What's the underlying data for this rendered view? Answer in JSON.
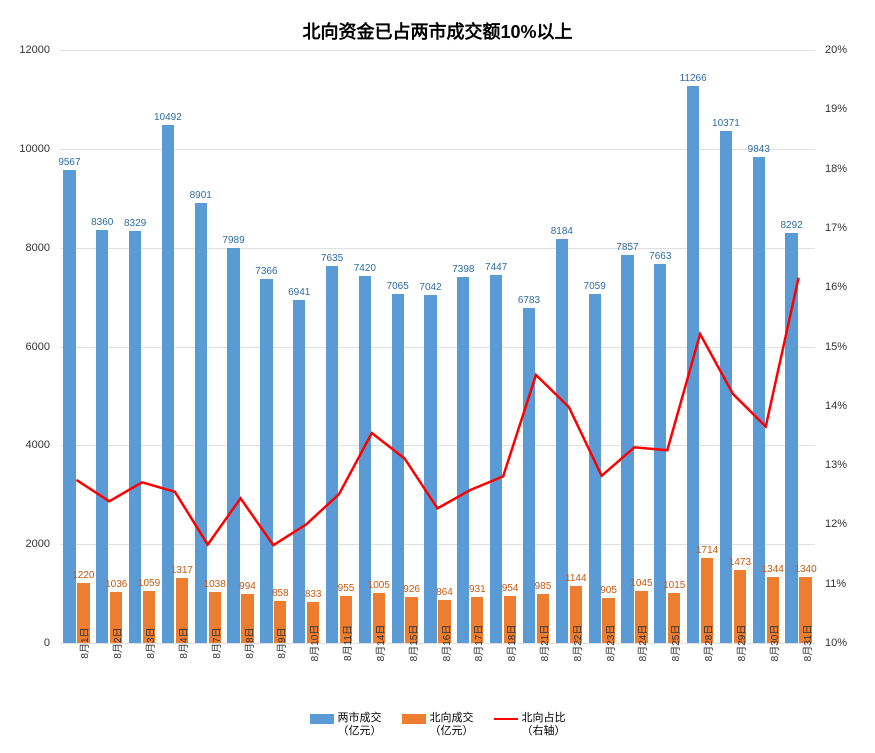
{
  "chart": {
    "type": "bar+line",
    "title": "北向资金已占两市成交额10%以上",
    "title_fontsize": 18,
    "background_color": "#ffffff",
    "grid_color": "#e0e0e0",
    "categories": [
      "8月1日",
      "8月2日",
      "8月3日",
      "8月4日",
      "8月7日",
      "8月8日",
      "8月9日",
      "8月10日",
      "8月11日",
      "8月14日",
      "8月15日",
      "8月16日",
      "8月17日",
      "8月18日",
      "8月21日",
      "8月22日",
      "8月23日",
      "8月24日",
      "8月25日",
      "8月28日",
      "8月29日",
      "8月30日",
      "8月31日"
    ],
    "series": [
      {
        "name": "两市成交（亿元）",
        "type": "bar",
        "color": "#5b9bd5",
        "label_color": "#2e6ca4",
        "values": [
          9567,
          8360,
          8329,
          10492,
          8901,
          7989,
          7366,
          6941,
          7635,
          7420,
          7065,
          7042,
          7398,
          7447,
          6783,
          8184,
          7059,
          7857,
          7663,
          11266,
          10371,
          9843,
          8292
        ],
        "axis": "left"
      },
      {
        "name": "北向成交（亿元）",
        "type": "bar",
        "color": "#ed7d31",
        "label_color": "#c55a11",
        "values": [
          1220,
          1036,
          1059,
          1317,
          1038,
          994,
          858,
          833,
          955,
          1005,
          926,
          864,
          931,
          954,
          985,
          1144,
          905,
          1045,
          1015,
          1714,
          1473,
          1344,
          1340
        ],
        "axis": "left"
      },
      {
        "name": "北向占比（右轴）",
        "type": "line",
        "color": "#ff0000",
        "line_width": 2.5,
        "values": [
          12.75,
          12.39,
          12.71,
          12.55,
          11.66,
          12.44,
          11.65,
          12.0,
          12.51,
          13.54,
          13.11,
          12.27,
          12.58,
          12.81,
          14.52,
          13.98,
          12.82,
          13.3,
          13.25,
          15.21,
          14.2,
          13.65,
          16.16
        ],
        "axis": "right"
      }
    ],
    "y_axis_left": {
      "min": 0,
      "max": 12000,
      "step": 2000,
      "ticks": [
        0,
        2000,
        4000,
        6000,
        8000,
        10000,
        12000
      ],
      "label_fontsize": 11
    },
    "y_axis_right": {
      "min": 10,
      "max": 20,
      "step": 1,
      "ticks": [
        "10%",
        "11%",
        "12%",
        "13%",
        "14%",
        "15%",
        "16%",
        "17%",
        "18%",
        "19%",
        "20%"
      ],
      "tick_values": [
        10,
        11,
        12,
        13,
        14,
        15,
        16,
        17,
        18,
        19,
        20
      ],
      "label_fontsize": 11
    },
    "bar_group_width": 0.8,
    "bar_gap": 0.05,
    "legend": {
      "items": [
        {
          "label": "两市成交\n（亿元）",
          "type": "bar",
          "color": "#5b9bd5"
        },
        {
          "label": "北向成交\n（亿元）",
          "type": "bar",
          "color": "#ed7d31"
        },
        {
          "label": "北向占比\n（右轴）",
          "type": "line",
          "color": "#ff0000"
        }
      ]
    }
  }
}
